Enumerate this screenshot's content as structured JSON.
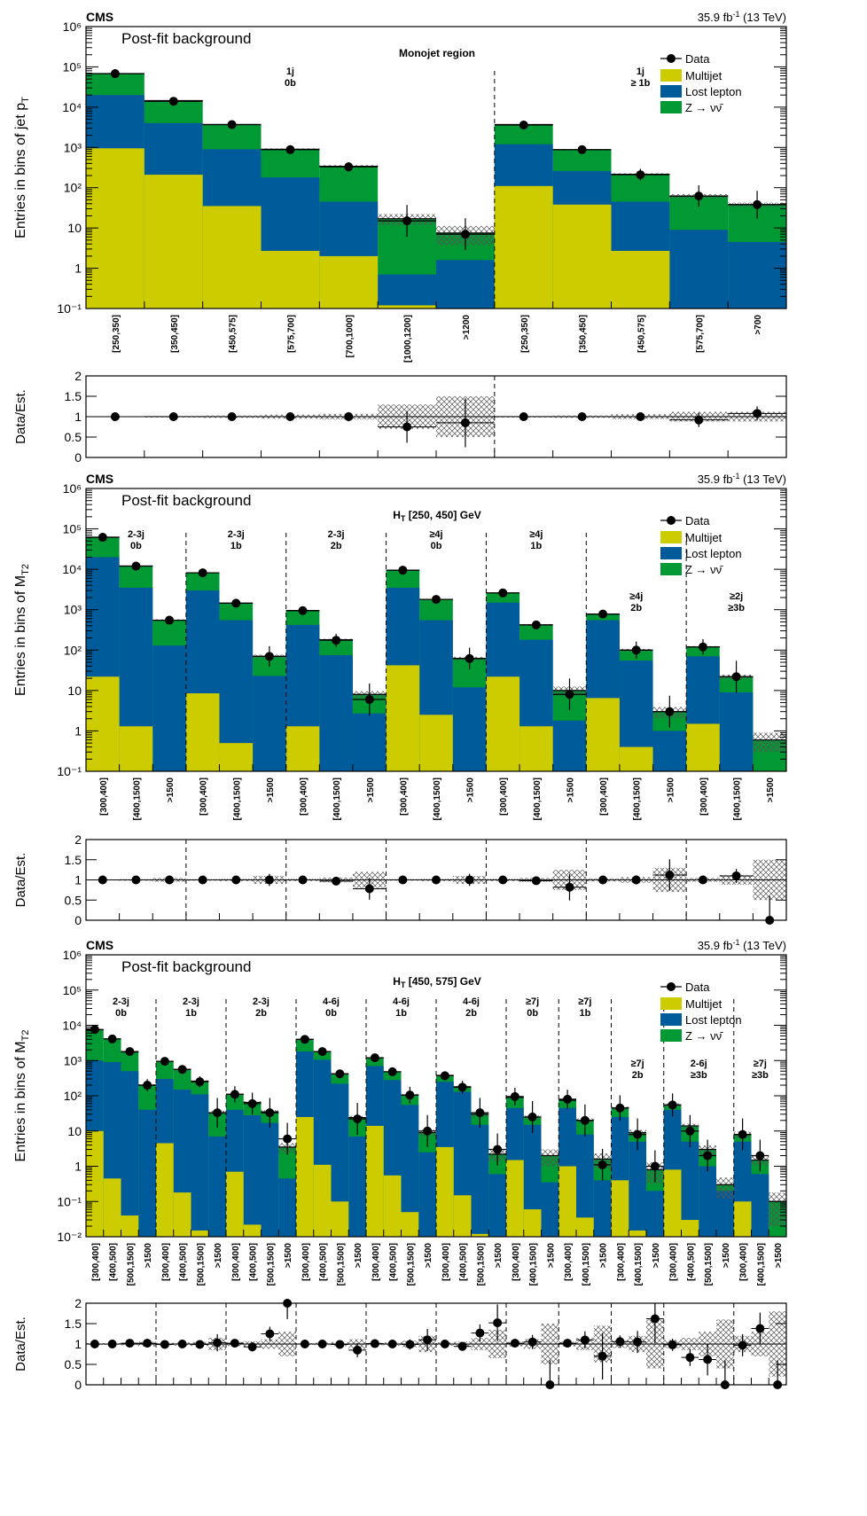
{
  "chart_data": [
    {
      "type": "bar",
      "scale": "log",
      "experiment": "CMS",
      "luminosity": "35.9 fb",
      "lumi_sup": "-1",
      "energy": "(13 TeV)",
      "caption": "Post-fit background",
      "region": "Monojet region",
      "ylabel": "Entries in bins of jet p",
      "ylabel_sub": "T",
      "ylim": [
        0.1,
        1000000
      ],
      "y_ticks": [
        {
          "v": 0.1,
          "l": "10⁻¹"
        },
        {
          "v": 1,
          "l": "1"
        },
        {
          "v": 10,
          "l": "10"
        },
        {
          "v": 100,
          "l": "10²"
        },
        {
          "v": 1000,
          "l": "10³"
        },
        {
          "v": 10000,
          "l": "10⁴"
        },
        {
          "v": 100000,
          "l": "10⁵"
        },
        {
          "v": 1000000,
          "l": "10⁶"
        }
      ],
      "categories": [
        "[250,350]",
        "[350,450]",
        "[450,575]",
        "[575,700]",
        "[700,1000]",
        "[1000,1200]",
        ">1200",
        "[250,350]",
        "[350,450]",
        "[450,575]",
        "[575,700]",
        ">700"
      ],
      "groups": [
        {
          "label1": "1j",
          "label2": "0b",
          "start": 0,
          "end": 7
        },
        {
          "label1": "1j",
          "label2": "≥ 1b",
          "start": 7,
          "end": 12
        }
      ],
      "series": [
        {
          "name": "Multijet",
          "color": "#cccc00",
          "values": [
            950,
            210,
            35,
            2.7,
            2,
            0.12,
            0,
            110,
            38,
            2.7,
            0,
            0
          ]
        },
        {
          "name": "Lost lepton",
          "color": "#005b9a",
          "values": [
            20000,
            4000,
            900,
            180,
            45,
            0.7,
            1.6,
            1200,
            260,
            45,
            9,
            4.5
          ]
        },
        {
          "name": "Z → νν̄",
          "color": "#009933",
          "values": [
            68000,
            14500,
            3700,
            900,
            340,
            17,
            7.5,
            3700,
            880,
            215,
            62,
            38
          ]
        }
      ],
      "data": {
        "name": "Data",
        "values": [
          68000,
          14000,
          3700,
          880,
          330,
          15,
          7,
          3600,
          880,
          210,
          62,
          38
        ]
      },
      "ratio": {
        "ylabel": "Data/Est.",
        "ylim": [
          0,
          2
        ],
        "y_ticks": [
          {
            "v": 0,
            "l": "0"
          },
          {
            "v": 0.5,
            "l": "0.5"
          },
          {
            "v": 1,
            "l": "1"
          },
          {
            "v": 1.5,
            "l": "1.5"
          },
          {
            "v": 2,
            "l": "2"
          }
        ],
        "values": [
          1.0,
          1.0,
          1.0,
          1.0,
          1.0,
          0.75,
          0.85,
          1.0,
          1.0,
          1.0,
          0.92,
          1.08
        ],
        "unc": [
          0.01,
          0.02,
          0.03,
          0.05,
          0.07,
          0.3,
          0.5,
          0.02,
          0.03,
          0.06,
          0.12,
          0.12
        ]
      }
    },
    {
      "type": "bar",
      "scale": "log",
      "experiment": "CMS",
      "luminosity": "35.9 fb",
      "lumi_sup": "-1",
      "energy": "(13 TeV)",
      "caption": "Post-fit background",
      "region": "H",
      "region_sub": "T",
      "region_rest": " [250, 450] GeV",
      "ylabel": "Entries in bins of M",
      "ylabel_sub": "T2",
      "ylim": [
        0.1,
        1000000
      ],
      "y_ticks": [
        {
          "v": 0.1,
          "l": "10⁻¹"
        },
        {
          "v": 1,
          "l": "1"
        },
        {
          "v": 10,
          "l": "10"
        },
        {
          "v": 100,
          "l": "10²"
        },
        {
          "v": 1000,
          "l": "10³"
        },
        {
          "v": 10000,
          "l": "10⁴"
        },
        {
          "v": 100000,
          "l": "10⁵"
        },
        {
          "v": 1000000,
          "l": "10⁶"
        }
      ],
      "categories": [
        "[300,400]",
        "[400,1500]",
        ">1500",
        "[300,400]",
        "[400,1500]",
        ">1500",
        "[300,400]",
        "[400,1500]",
        ">1500",
        "[300,400]",
        "[400,1500]",
        ">1500",
        "[300,400]",
        "[400,1500]",
        ">1500",
        "[300,400]",
        "[400,1500]",
        ">1500",
        "[300,400]",
        "[400,1500]",
        ">1500"
      ],
      "groups": [
        {
          "label1": "2-3j",
          "label2": "0b",
          "start": 0,
          "end": 3
        },
        {
          "label1": "2-3j",
          "label2": "1b",
          "start": 3,
          "end": 6
        },
        {
          "label1": "2-3j",
          "label2": "2b",
          "start": 6,
          "end": 9
        },
        {
          "label1": "≥4j",
          "label2": "0b",
          "start": 9,
          "end": 12
        },
        {
          "label1": "≥4j",
          "label2": "1b",
          "start": 12,
          "end": 15
        },
        {
          "label1": "≥4j",
          "label2": "2b",
          "start": 15,
          "end": 18
        },
        {
          "label1": "≥2j",
          "label2": "≥3b",
          "start": 18,
          "end": 21
        }
      ],
      "series": [
        {
          "name": "Multijet",
          "color": "#cccc00",
          "values": [
            22,
            1.3,
            0,
            8.5,
            0.5,
            0,
            1.3,
            0,
            0,
            42,
            2.5,
            0,
            22,
            1.3,
            0,
            6.5,
            0.4,
            0,
            1.5,
            0,
            0
          ]
        },
        {
          "name": "Lost lepton",
          "color": "#005b9a",
          "values": [
            20000,
            3500,
            130,
            3000,
            550,
            23,
            420,
            75,
            2.7,
            3500,
            550,
            12,
            1500,
            180,
            1.8,
            550,
            55,
            1,
            70,
            9,
            0
          ]
        },
        {
          "name": "Z → νν̄",
          "color": "#009933",
          "values": [
            62000,
            12000,
            550,
            8200,
            1450,
            70,
            950,
            180,
            8,
            9500,
            1800,
            62,
            2600,
            420,
            10,
            780,
            100,
            3,
            120,
            22,
            0.6
          ]
        }
      ],
      "data": {
        "name": "Data",
        "values": [
          62000,
          12000,
          550,
          8200,
          1450,
          70,
          950,
          175,
          6,
          9500,
          1800,
          62,
          2600,
          420,
          8,
          780,
          100,
          3,
          120,
          22,
          0
        ]
      },
      "ratio": {
        "ylabel": "Data/Est.",
        "ylim": [
          0,
          2
        ],
        "y_ticks": [
          {
            "v": 0,
            "l": "0"
          },
          {
            "v": 0.5,
            "l": "0.5"
          },
          {
            "v": 1,
            "l": "1"
          },
          {
            "v": 1.5,
            "l": "1.5"
          },
          {
            "v": 2,
            "l": "2"
          }
        ],
        "values": [
          1.0,
          1.0,
          1.0,
          1.0,
          1.0,
          1.0,
          1.0,
          0.97,
          0.78,
          1.0,
          1.0,
          1.0,
          1.0,
          0.98,
          0.82,
          1.0,
          1.0,
          1.12,
          1.0,
          1.1,
          0
        ],
        "unc": [
          0.01,
          0.02,
          0.05,
          0.02,
          0.03,
          0.1,
          0.03,
          0.06,
          0.2,
          0.02,
          0.03,
          0.1,
          0.03,
          0.05,
          0.25,
          0.04,
          0.07,
          0.3,
          0.05,
          0.12,
          0.5
        ]
      }
    },
    {
      "type": "bar",
      "scale": "log",
      "experiment": "CMS",
      "luminosity": "35.9 fb",
      "lumi_sup": "-1",
      "energy": "(13 TeV)",
      "caption": "Post-fit background",
      "region": "H",
      "region_sub": "T",
      "region_rest": " [450, 575] GeV",
      "ylabel": "Entries in bins of M",
      "ylabel_sub": "T2",
      "ylim": [
        0.01,
        1000000
      ],
      "y_ticks": [
        {
          "v": 0.01,
          "l": "10⁻²"
        },
        {
          "v": 0.1,
          "l": "10⁻¹"
        },
        {
          "v": 1,
          "l": "1"
        },
        {
          "v": 10,
          "l": "10"
        },
        {
          "v": 100,
          "l": "10²"
        },
        {
          "v": 1000,
          "l": "10³"
        },
        {
          "v": 10000,
          "l": "10⁴"
        },
        {
          "v": 100000,
          "l": "10⁵"
        },
        {
          "v": 1000000,
          "l": "10⁶"
        }
      ],
      "categories": [
        "[300,400]",
        "[400,500]",
        "[500,1500]",
        ">1500",
        "[300,400]",
        "[400,500]",
        "[500,1500]",
        ">1500",
        "[300,400]",
        "[400,500]",
        "[500,1500]",
        ">1500",
        "[300,400]",
        "[400,500]",
        "[500,1500]",
        ">1500",
        "[300,400]",
        "[400,500]",
        "[500,1500]",
        ">1500",
        "[300,400]",
        "[400,500]",
        "[500,1500]",
        ">1500",
        "[300,400]",
        "[400,1500]",
        ">1500",
        "[300,400]",
        "[400,1500]",
        ">1500",
        "[300,400]",
        "[400,1500]",
        ">1500",
        "[300,400]",
        "[400,500]",
        "[500,1500]",
        ">1500",
        "[300,400]",
        "[400,1500]",
        ">1500"
      ],
      "groups": [
        {
          "label1": "2-3j",
          "label2": "0b",
          "start": 0,
          "end": 4
        },
        {
          "label1": "2-3j",
          "label2": "1b",
          "start": 4,
          "end": 8
        },
        {
          "label1": "2-3j",
          "label2": "2b",
          "start": 8,
          "end": 12
        },
        {
          "label1": "4-6j",
          "label2": "0b",
          "start": 12,
          "end": 16
        },
        {
          "label1": "4-6j",
          "label2": "1b",
          "start": 16,
          "end": 20
        },
        {
          "label1": "4-6j",
          "label2": "2b",
          "start": 20,
          "end": 24
        },
        {
          "label1": "≥7j",
          "label2": "0b",
          "start": 24,
          "end": 27
        },
        {
          "label1": "≥7j",
          "label2": "1b",
          "start": 27,
          "end": 30
        },
        {
          "label1": "≥7j",
          "label2": "2b",
          "start": 30,
          "end": 33
        },
        {
          "label1": "2-6j",
          "label2": "≥3b",
          "start": 33,
          "end": 37
        },
        {
          "label1": "≥7j",
          "label2": "≥3b",
          "start": 37,
          "end": 40
        }
      ],
      "series": [
        {
          "name": "Multijet",
          "color": "#cccc00",
          "values": [
            10,
            0.45,
            0.04,
            0,
            4.5,
            0.18,
            0.015,
            0,
            0.7,
            0.022,
            0,
            0,
            25,
            1.1,
            0.1,
            0,
            14,
            0.55,
            0.05,
            0,
            3.5,
            0.15,
            0.012,
            0,
            1.5,
            0.06,
            0,
            1,
            0.035,
            0,
            0.4,
            0.015,
            0,
            0.8,
            0.03,
            0,
            0,
            0.1,
            0,
            0
          ]
        },
        {
          "name": "Lost lepton",
          "color": "#005b9a",
          "values": [
            1000,
            900,
            500,
            40,
            300,
            150,
            110,
            7,
            40,
            28,
            17,
            0.45,
            1800,
            1050,
            220,
            7,
            700,
            280,
            55,
            2.5,
            250,
            130,
            15,
            0.6,
            45,
            15,
            0.35,
            45,
            8,
            0.4,
            25,
            5,
            0.2,
            40,
            5,
            1,
            0.2,
            5,
            0.6,
            0
          ]
        },
        {
          "name": "Z → νν̄",
          "color": "#009933",
          "values": [
            7500,
            4100,
            1750,
            200,
            950,
            560,
            260,
            33,
            110,
            65,
            35,
            3.5,
            4000,
            1800,
            420,
            24,
            1200,
            480,
            105,
            9,
            380,
            180,
            30,
            2.2,
            90,
            25,
            2,
            75,
            20,
            1.6,
            45,
            9,
            0.8,
            55,
            14,
            3,
            0.3,
            8,
            1.5,
            0.1
          ]
        }
      ],
      "data": {
        "name": "Data",
        "values": [
          7600,
          4100,
          1800,
          200,
          950,
          560,
          250,
          33,
          110,
          60,
          33,
          6,
          4000,
          1800,
          420,
          22,
          1200,
          480,
          105,
          10,
          370,
          175,
          33,
          3,
          95,
          25,
          0,
          80,
          20,
          1.1,
          45,
          8,
          1,
          55,
          10,
          2,
          0,
          8,
          2,
          0
        ]
      },
      "ratio": {
        "ylabel": "Data/Est.",
        "ylim": [
          0,
          2
        ],
        "y_ticks": [
          {
            "v": 0,
            "l": "0"
          },
          {
            "v": 0.5,
            "l": "0.5"
          },
          {
            "v": 1,
            "l": "1"
          },
          {
            "v": 1.5,
            "l": "1.5"
          },
          {
            "v": 2,
            "l": "2"
          }
        ],
        "values": [
          1.0,
          1.0,
          1.02,
          1.02,
          0.99,
          1.0,
          0.99,
          1.03,
          1.02,
          0.93,
          1.25,
          2.0,
          1.0,
          1.0,
          0.99,
          0.85,
          1.01,
          1.0,
          0.99,
          1.1,
          1.0,
          0.94,
          1.27,
          1.52,
          1.02,
          1.05,
          0,
          1.02,
          1.1,
          0.7,
          1.06,
          1.05,
          1.62,
          0.98,
          0.67,
          0.62,
          0,
          0.97,
          1.38,
          0
        ],
        "unc": [
          0.02,
          0.02,
          0.03,
          0.06,
          0.03,
          0.04,
          0.05,
          0.15,
          0.05,
          0.07,
          0.12,
          0.3,
          0.02,
          0.03,
          0.05,
          0.12,
          0.03,
          0.04,
          0.08,
          0.2,
          0.04,
          0.06,
          0.15,
          0.35,
          0.06,
          0.12,
          0.5,
          0.06,
          0.15,
          0.45,
          0.1,
          0.2,
          0.6,
          0.1,
          0.15,
          0.3,
          0.6,
          0.2,
          0.3,
          0.8
        ]
      }
    }
  ]
}
